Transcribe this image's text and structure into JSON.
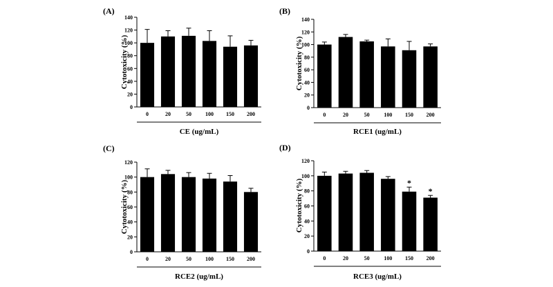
{
  "chart_data": [
    {
      "type": "bar",
      "panel_label": "(A)",
      "title": "",
      "xlabel": "CE (ug/mL)",
      "ylabel": "Cytotoxicity (%)",
      "categories": [
        "0",
        "20",
        "50",
        "100",
        "150",
        "200"
      ],
      "values": [
        100,
        110,
        111,
        103,
        94,
        96
      ],
      "errors": [
        21,
        9,
        12,
        16,
        17,
        8
      ],
      "annotations": [
        "",
        "",
        "",
        "",
        "",
        ""
      ],
      "ylim": [
        0,
        140
      ],
      "yticks": [
        "0",
        "20",
        "40",
        "60",
        "80",
        "100",
        "120",
        "140"
      ],
      "grid": false,
      "bar_color": "#000000"
    },
    {
      "type": "bar",
      "panel_label": "(B)",
      "title": "",
      "xlabel": "RCE1 (ug/mL)",
      "ylabel": "Cytotoxicity (%)",
      "categories": [
        "0",
        "20",
        "50",
        "100",
        "150",
        "200"
      ],
      "values": [
        100,
        112,
        105,
        97,
        91,
        97
      ],
      "errors": [
        4,
        4,
        2,
        12,
        14,
        4
      ],
      "annotations": [
        "",
        "",
        "",
        "",
        "",
        ""
      ],
      "ylim": [
        0,
        140
      ],
      "yticks": [
        "0",
        "20",
        "40",
        "60",
        "80",
        "100",
        "120",
        "140"
      ],
      "grid": false,
      "bar_color": "#000000"
    },
    {
      "type": "bar",
      "panel_label": "(C)",
      "title": "",
      "xlabel": "RCE2 (ug/mL)",
      "ylabel": "Cytotoxicity (%)",
      "categories": [
        "0",
        "20",
        "50",
        "100",
        "150",
        "200"
      ],
      "values": [
        100,
        104,
        100,
        98,
        94,
        80
      ],
      "errors": [
        11,
        5,
        6,
        7,
        8,
        5
      ],
      "annotations": [
        "",
        "",
        "",
        "",
        "",
        ""
      ],
      "ylim": [
        0,
        120
      ],
      "yticks": [
        "0",
        "20",
        "40",
        "60",
        "80",
        "100",
        "120"
      ],
      "grid": false,
      "bar_color": "#000000"
    },
    {
      "type": "bar",
      "panel_label": "(D)",
      "title": "",
      "xlabel": "RCE3 (ug/mL)",
      "ylabel": "Cytotoxicity (%)",
      "categories": [
        "0",
        "20",
        "50",
        "100",
        "150",
        "200"
      ],
      "values": [
        100,
        103,
        104,
        96,
        79,
        71
      ],
      "errors": [
        5,
        3,
        3,
        3,
        6,
        3
      ],
      "annotations": [
        "",
        "",
        "",
        "",
        "*",
        "*"
      ],
      "ylim": [
        0,
        120
      ],
      "yticks": [
        "0",
        "20",
        "40",
        "60",
        "80",
        "100",
        "120"
      ],
      "grid": false,
      "bar_color": "#000000"
    }
  ]
}
